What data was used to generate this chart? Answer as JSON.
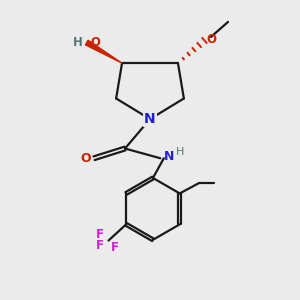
{
  "background_color": "#ebebeb",
  "bond_color": "#1a1a1a",
  "n_color": "#2222cc",
  "o_color": "#cc2200",
  "f_color": "#cc22cc",
  "ho_color": "#557777",
  "line_width": 1.6,
  "figsize": [
    3.0,
    3.0
  ],
  "dpi": 100,
  "xlim": [
    0,
    10
  ],
  "ylim": [
    0,
    10
  ]
}
